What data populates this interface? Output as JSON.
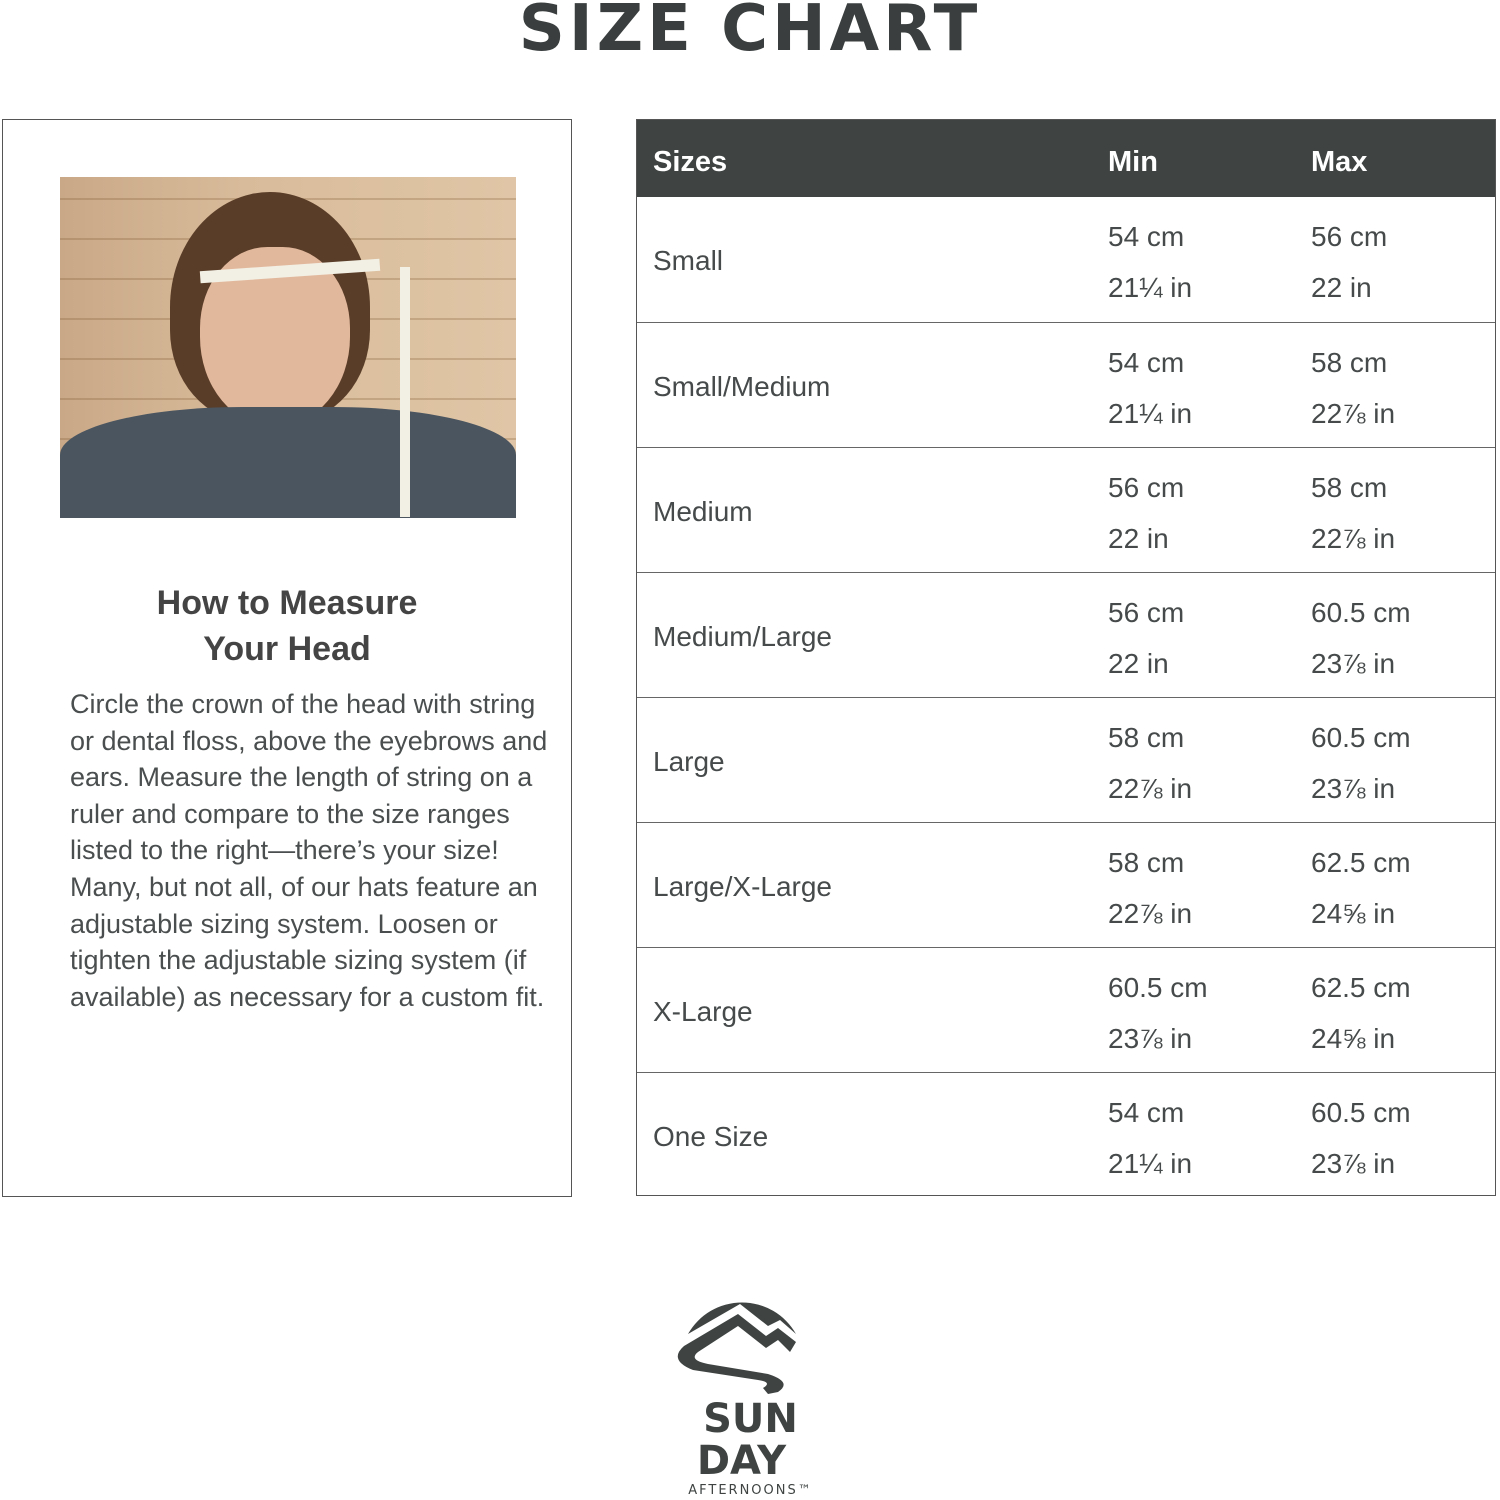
{
  "title": "SIZE CHART",
  "guide": {
    "heading_line1": "How to Measure",
    "heading_line2": "Your Head",
    "body": "Circle the crown of the head with string or dental floss, above the eyebrows and ears. Measure the length of string on a ruler and compare to the size ranges listed to the right—there’s your size! Many, but not all, of our hats feature an adjustable sizing system. Loosen or tighten the adjustable sizing system (if available) as necessary for a custom fit."
  },
  "table": {
    "headers": [
      "Sizes",
      "Min",
      "Max"
    ],
    "header_color": "#3f4443",
    "rows": [
      {
        "size": "Small",
        "min_cm": "54 cm",
        "min_in": "21¼ in",
        "max_cm": "56 cm",
        "max_in": "22 in"
      },
      {
        "size": "Small/Medium",
        "min_cm": "54 cm",
        "min_in": "21¼ in",
        "max_cm": "58 cm",
        "max_in": "22⅞ in"
      },
      {
        "size": "Medium",
        "min_cm": "56 cm",
        "min_in": "22 in",
        "max_cm": "58 cm",
        "max_in": "22⅞ in"
      },
      {
        "size": "Medium/Large",
        "min_cm": "56 cm",
        "min_in": "22 in",
        "max_cm": "60.5 cm",
        "max_in": "23⅞ in"
      },
      {
        "size": "Large",
        "min_cm": "58 cm",
        "min_in": "22⅞ in",
        "max_cm": "60.5 cm",
        "max_in": "23⅞ in"
      },
      {
        "size": "Large/X-Large",
        "min_cm": "58 cm",
        "min_in": "22⅞ in",
        "max_cm": "62.5 cm",
        "max_in": "24⅝ in"
      },
      {
        "size": "X-Large",
        "min_cm": "60.5 cm",
        "min_in": "23⅞ in",
        "max_cm": "62.5 cm",
        "max_in": "24⅝ in"
      },
      {
        "size": "One Size",
        "min_cm": "54 cm",
        "min_in": "21¼ in",
        "max_cm": "60.5 cm",
        "max_in": "23⅞ in"
      }
    ]
  },
  "logo": {
    "line1": "SUN",
    "line2": "DAY",
    "line3": "AFTERNOONS™"
  }
}
